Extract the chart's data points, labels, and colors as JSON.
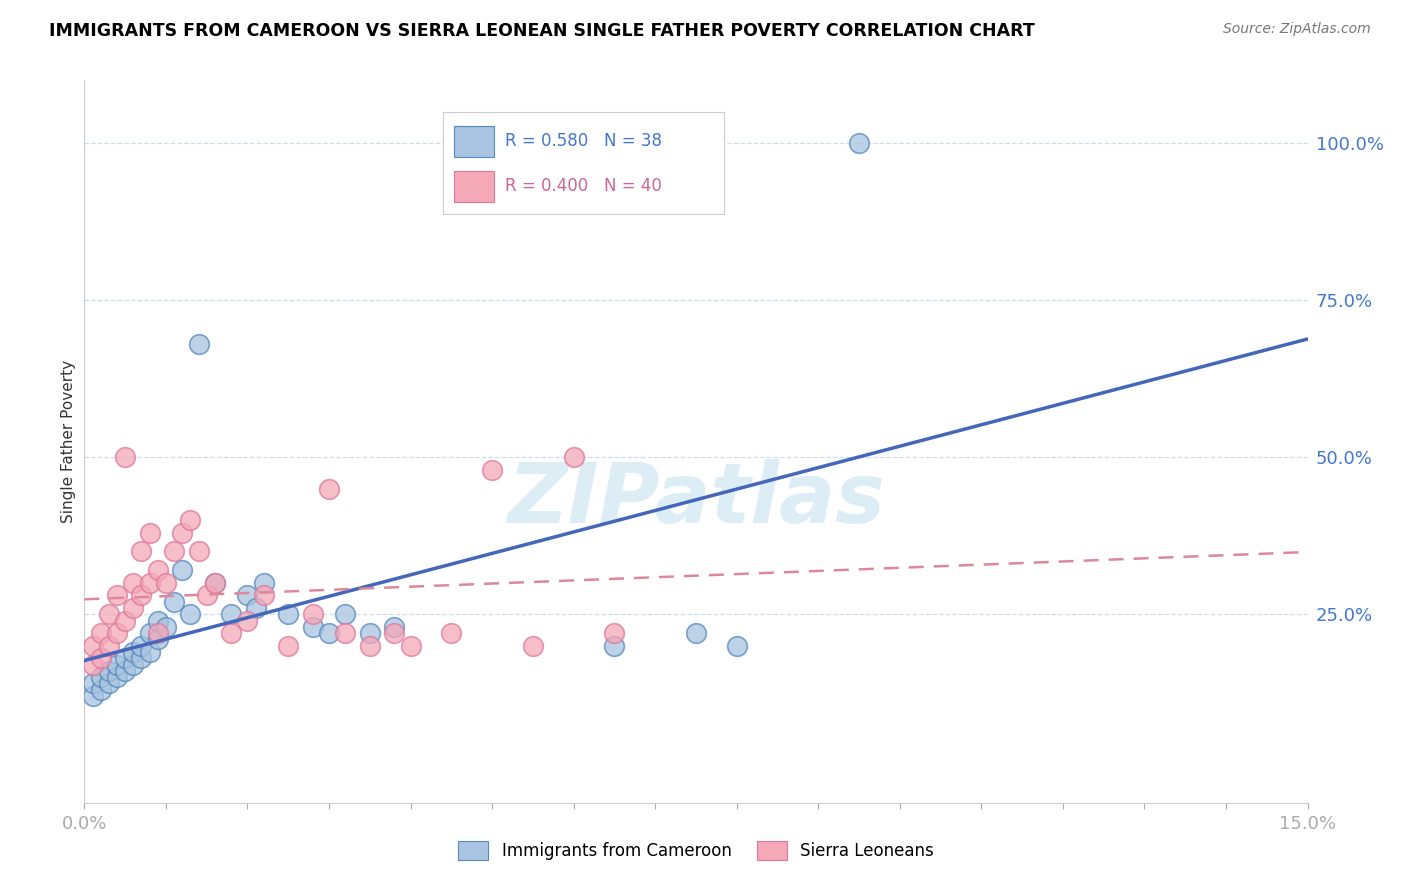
{
  "title": "IMMIGRANTS FROM CAMEROON VS SIERRA LEONEAN SINGLE FATHER POVERTY CORRELATION CHART",
  "source": "Source: ZipAtlas.com",
  "ylabel": "Single Father Poverty",
  "xlim": [
    0.0,
    0.15
  ],
  "ylim": [
    -0.05,
    1.1
  ],
  "plot_ylim": [
    0.0,
    1.1
  ],
  "yticks": [
    0.0,
    0.25,
    0.5,
    0.75,
    1.0
  ],
  "ytick_labels": [
    "",
    "25.0%",
    "50.0%",
    "75.0%",
    "100.0%"
  ],
  "legend1_label": "R = 0.580   N = 38",
  "legend2_label": "R = 0.400   N = 40",
  "blue_fill": "#A8C4E0",
  "blue_edge": "#5588BB",
  "pink_fill": "#F4A8B8",
  "pink_edge": "#DD7799",
  "blue_line": "#4466BB",
  "pink_line": "#DD8899",
  "grid_color": "#CCDDEE",
  "watermark": "ZIPatlas",
  "cameroon_x": [
    0.001,
    0.001,
    0.002,
    0.002,
    0.003,
    0.003,
    0.004,
    0.004,
    0.005,
    0.005,
    0.006,
    0.006,
    0.007,
    0.007,
    0.008,
    0.008,
    0.009,
    0.009,
    0.01,
    0.011,
    0.012,
    0.013,
    0.014,
    0.016,
    0.018,
    0.02,
    0.021,
    0.022,
    0.025,
    0.028,
    0.03,
    0.032,
    0.035,
    0.038,
    0.065,
    0.075,
    0.08,
    0.095
  ],
  "cameroon_y": [
    0.12,
    0.14,
    0.13,
    0.15,
    0.14,
    0.16,
    0.15,
    0.17,
    0.16,
    0.18,
    0.17,
    0.19,
    0.18,
    0.2,
    0.22,
    0.19,
    0.21,
    0.24,
    0.23,
    0.27,
    0.32,
    0.25,
    0.68,
    0.3,
    0.25,
    0.28,
    0.26,
    0.3,
    0.25,
    0.23,
    0.22,
    0.25,
    0.22,
    0.23,
    0.2,
    0.22,
    0.2,
    1.0
  ],
  "sierraleone_x": [
    0.001,
    0.001,
    0.002,
    0.002,
    0.003,
    0.003,
    0.004,
    0.004,
    0.005,
    0.005,
    0.006,
    0.006,
    0.007,
    0.007,
    0.008,
    0.008,
    0.009,
    0.009,
    0.01,
    0.011,
    0.012,
    0.013,
    0.014,
    0.015,
    0.016,
    0.018,
    0.02,
    0.022,
    0.025,
    0.028,
    0.03,
    0.032,
    0.035,
    0.038,
    0.04,
    0.045,
    0.05,
    0.055,
    0.06,
    0.065
  ],
  "sierraleone_y": [
    0.17,
    0.2,
    0.18,
    0.22,
    0.2,
    0.25,
    0.22,
    0.28,
    0.24,
    0.5,
    0.26,
    0.3,
    0.28,
    0.35,
    0.3,
    0.38,
    0.32,
    0.22,
    0.3,
    0.35,
    0.38,
    0.4,
    0.35,
    0.28,
    0.3,
    0.22,
    0.24,
    0.28,
    0.2,
    0.25,
    0.45,
    0.22,
    0.2,
    0.22,
    0.2,
    0.22,
    0.48,
    0.2,
    0.5,
    0.22
  ]
}
